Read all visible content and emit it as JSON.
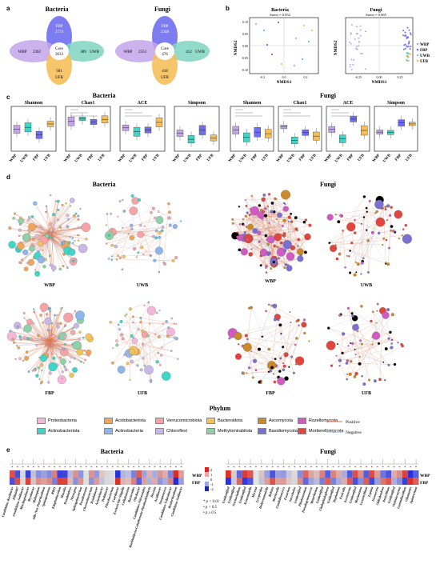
{
  "panel_labels": {
    "a": "a",
    "b": "b",
    "c": "c",
    "d": "d",
    "e": "e"
  },
  "venn": {
    "bacteria": {
      "title": "Bacteria",
      "core": "Core",
      "core_n": "3633",
      "top": "FBP",
      "top_n": "2774",
      "left": "WBP",
      "left_n": "2362",
      "right": "UWB",
      "right_n": "389",
      "bottom": "UFB",
      "bottom_n": "581"
    },
    "fungi": {
      "title": "Fungi",
      "core": "Core",
      "core_n": "476",
      "top": "FBP",
      "top_n": "2348",
      "left": "WBP",
      "left_n": "2553",
      "right": "UWB",
      "right_n": "412",
      "bottom": "UFB",
      "bottom_n": "418"
    }
  },
  "nmds": {
    "bacteria": {
      "title": "Bacteria",
      "stress": "Stress = 0.052",
      "xlabel": "NMDS1",
      "ylabel": "NMDS2",
      "xticks": [
        "-0.2",
        "0.0",
        "0.2"
      ],
      "yticks": [
        "0.10",
        "0.05",
        "0.00",
        "-0.05",
        "-0.10"
      ]
    },
    "fungi": {
      "title": "Fungi",
      "stress": "Stress = 0.065",
      "xlabel": "NMDS1",
      "ylabel": "NMDS2",
      "xticks": [
        "-0.25",
        "0.00",
        "0.25"
      ],
      "yticks": [
        "0.4",
        "0.2",
        "0.0",
        "-0.2",
        "-0.4"
      ],
      "legend": [
        "WBP",
        "FBP",
        "UWB",
        "UFB"
      ]
    }
  },
  "alpha": {
    "bacteria_title": "Bacteria",
    "fungi_title": "Fungi",
    "metrics": [
      "Shannon",
      "Chao1",
      "ACE",
      "Simpson"
    ],
    "groups": [
      "WBP",
      "UWB",
      "FBP",
      "UFB"
    ]
  },
  "networks": {
    "bacteria_title": "Bacteria",
    "fungi_title": "Fungi",
    "labels": [
      "WBP",
      "UWB",
      "FBP",
      "UFB",
      "WBP",
      "UWB",
      "FBP",
      "UFB"
    ]
  },
  "phylum_legend": {
    "title": "Phylum",
    "items": [
      {
        "name": "Proteobacteria",
        "color": "#f4b6d9"
      },
      {
        "name": "Acidobacteriota",
        "color": "#f0a55e"
      },
      {
        "name": "Verrucomicrobiota",
        "color": "#f6a3a8"
      },
      {
        "name": "Bacteroidota",
        "color": "#f2c25c"
      },
      {
        "name": "Actinobacteriota",
        "color": "#3fd6c7"
      },
      {
        "name": "Actinobacteria",
        "color": "#8fb6e8"
      },
      {
        "name": "Chloroflexi",
        "color": "#c9b7e6"
      },
      {
        "name": "Methylomirabilota",
        "color": "#8fd0a6"
      },
      {
        "name": "Ascomycota",
        "color": "#c98a2e"
      },
      {
        "name": "Basidiomycota",
        "color": "#7b6fd0"
      },
      {
        "name": "Rozellomycota",
        "color": "#d15cc1"
      },
      {
        "name": "Mortierellomycota",
        "color": "#e0463d"
      }
    ],
    "positive": "Positive",
    "negative": "Negative"
  },
  "heatmap": {
    "bacteria_title": "Bacteria",
    "fungi_title": "Fungi",
    "rows": [
      "WBP",
      "FBP"
    ],
    "scale": [
      "2",
      "1",
      "0",
      "-1",
      "-2"
    ],
    "sig": [
      "* p < 0.01",
      "• p < 0.5",
      "• p ≥ 0.5"
    ],
    "bacteria_taxa": [
      "Candidatus-Koribacter",
      "Ellin6067",
      "Candidatus-Solibacter",
      "Mucilaginibacter",
      "Bryobacter",
      "Haliangium",
      "Allo-Neo-Pararhizobium",
      "Sphingomonas",
      "RB41",
      "Edaphobaculum",
      "Massilia",
      "Pseudolabrys",
      "Nitrospira",
      "Sphingobacterium",
      "Pseudomonas",
      "Chryseobacterium",
      "Dyadobacter",
      "Acinetobacter",
      "Pedobacter",
      "Flavobacterium",
      "Luteibacter",
      "Escherichia-Shigella",
      "Cellulomonas",
      "Bacteroides",
      "Olivibacter",
      "Candidatus-Nitrosotalea",
      "Burkholderia-Caballeronia-Paraburkholderia",
      "Devosia",
      "Acidibacter",
      "Streptomyces",
      "Candidatus-Udaeobacter",
      "Bradyrhizobium",
      "Candidatus-Solibacter"
    ],
    "fungi_taxa": [
      "Unidentified",
      "Unidentified",
      "Trichocladium",
      "Unidentified",
      "Xenasmatella",
      "Mycena",
      "Lycoperdon",
      "Holtermanniella",
      "Boletus",
      "Mortierella",
      "Candolleomyces",
      "Fusarium",
      "Saccobolus",
      "Unidentified",
      "Phialemonium",
      "Pseudogymnoascus",
      "Metarhizium",
      "Unidentified",
      "Cladophialophora",
      "Unidentified",
      "Hypholoma",
      "Fusicolla",
      "Ascomycota",
      "Unidentified",
      "Mariannaea",
      "Lecanicillium",
      "Lepiota",
      "Neonectria",
      "Oidiodendron",
      "Penicillium",
      "Unidentified",
      "Vishniacozyma",
      "Geminibasidium",
      "Gliomastix",
      "Apiotrichum"
    ],
    "colors": {
      "high": "#e0251e",
      "low": "#1a2aa0"
    }
  }
}
